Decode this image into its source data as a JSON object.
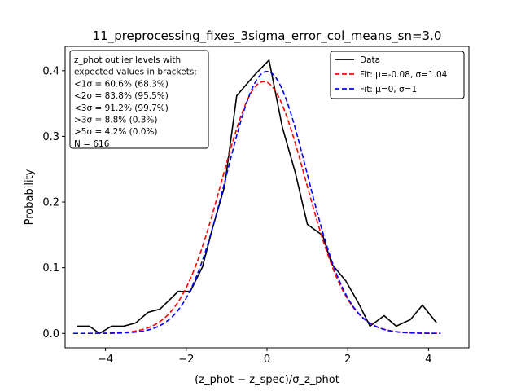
{
  "chart_data": {
    "type": "line",
    "title": "11_preprocessing_fixes_3sigma_error_col_means_sn=3.0",
    "xlabel": "(z_phot − z_spec)/σ_z_phot",
    "ylabel": "Probability",
    "xlim": [
      -5,
      5
    ],
    "ylim": [
      -0.022,
      0.437
    ],
    "xticks": [
      -4,
      -2,
      0,
      2,
      4
    ],
    "xtick_labels": [
      "−4",
      "−2",
      "0",
      "2",
      "4"
    ],
    "yticks": [
      0.0,
      0.1,
      0.2,
      0.3,
      0.4
    ],
    "ytick_labels": [
      "0.0",
      "0.1",
      "0.2",
      "0.3",
      "0.4"
    ],
    "grid": false,
    "legend_position": "top-right",
    "series": [
      {
        "name": "Data",
        "color": "#000000",
        "dash": "solid",
        "x": [
          -4.7,
          -4.4,
          -4.15,
          -3.85,
          -3.55,
          -3.25,
          -2.95,
          -2.65,
          -2.2,
          -2.1,
          -1.9,
          -1.6,
          -1.35,
          -1.05,
          -0.75,
          -0.3,
          0.05,
          0.38,
          0.7,
          1.0,
          1.38,
          1.6,
          1.95,
          2.25,
          2.55,
          2.9,
          3.2,
          3.55,
          3.85,
          4.2
        ],
        "y": [
          0.011,
          0.011,
          0.0,
          0.011,
          0.011,
          0.016,
          0.032,
          0.037,
          0.064,
          0.064,
          0.064,
          0.101,
          0.16,
          0.224,
          0.362,
          0.394,
          0.416,
          0.314,
          0.245,
          0.166,
          0.149,
          0.106,
          0.08,
          0.048,
          0.011,
          0.027,
          0.011,
          0.021,
          0.043,
          0.016
        ]
      },
      {
        "name": "Fit: μ=-0.08, σ=1.04",
        "color": "#ff0000",
        "dash": "dashed",
        "mu": -0.08,
        "sigma": 1.04,
        "x_range": [
          -4.8,
          4.3
        ]
      },
      {
        "name": "Fit: μ=0, σ=1",
        "color": "#0000ff",
        "dash": "dashed",
        "mu": 0,
        "sigma": 1,
        "x_range": [
          -4.8,
          4.3
        ]
      }
    ],
    "info_box": {
      "lines": [
        "z_phot outlier levels with",
        " expected values in brackets:",
        "<1σ = 60.6% (68.3%)",
        "<2σ = 83.8% (95.5%)",
        "<3σ = 91.2% (99.7%)",
        ">3σ = 8.8% (0.3%)",
        ">5σ = 4.2% (0.0%)",
        "N = 616"
      ]
    }
  }
}
